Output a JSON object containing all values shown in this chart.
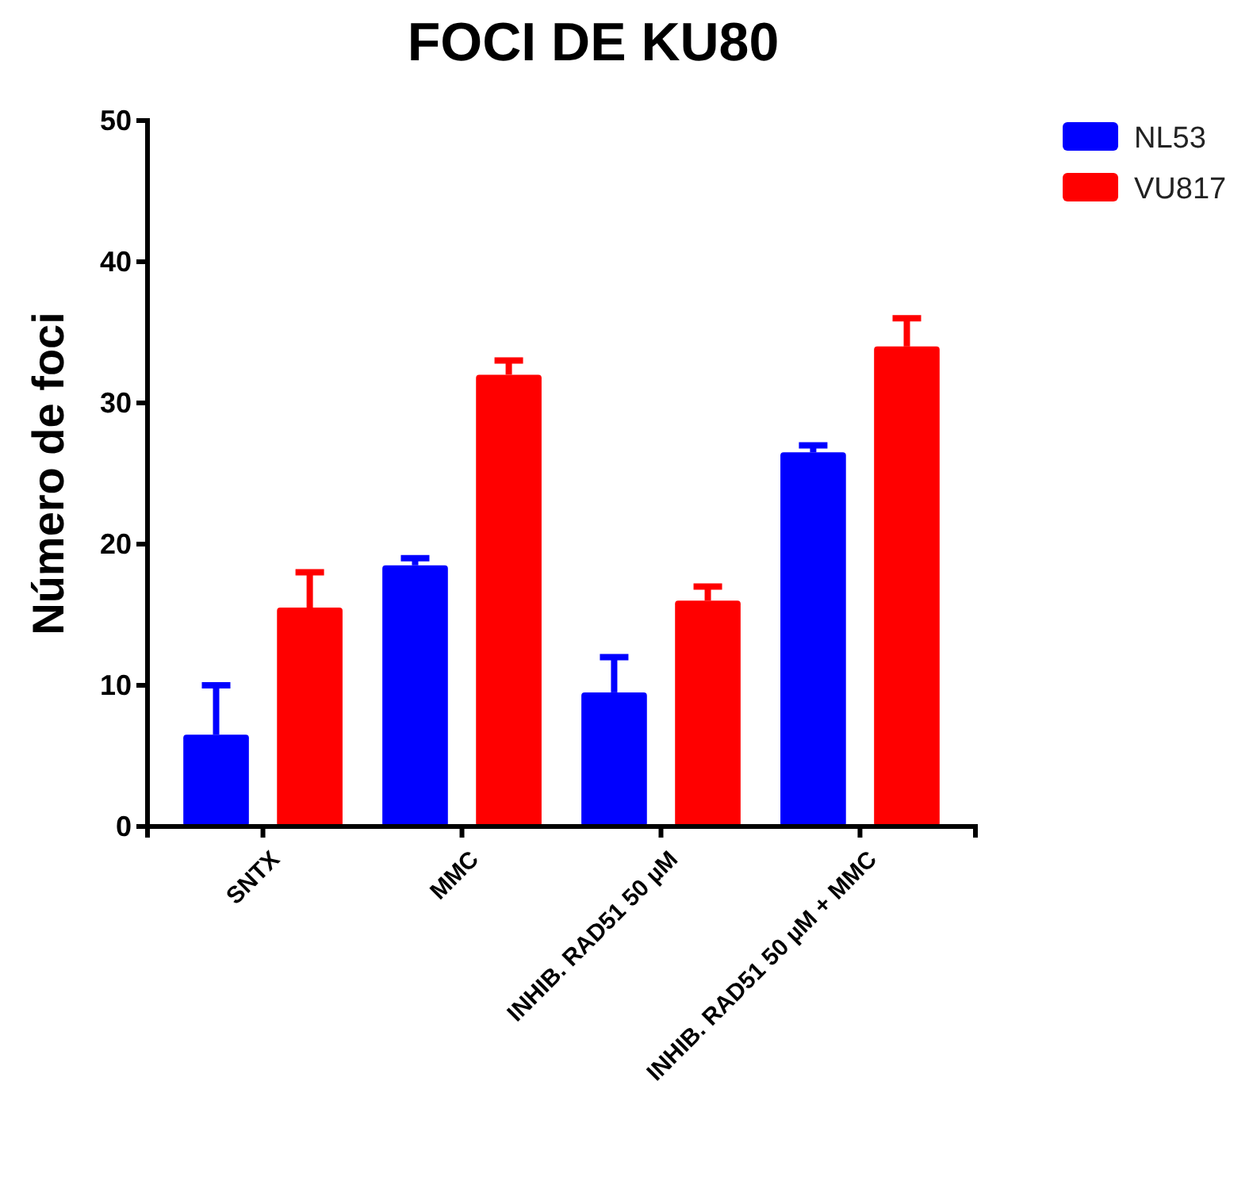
{
  "chart_data": {
    "type": "bar",
    "title": "FOCI DE KU80",
    "ylabel": "Número de foci",
    "categories": [
      "SNTX",
      "MMC",
      "INHIB. RAD51 50 µM",
      "INHIB. RAD51 50 µM + MMC"
    ],
    "series": [
      {
        "name": "NL53",
        "color": "#0000ff",
        "values": [
          6.5,
          18.5,
          9.5,
          26.5
        ],
        "errors": [
          [
            6.5,
            10
          ],
          [
            18.5,
            19
          ],
          [
            9.5,
            12
          ],
          [
            26.5,
            27
          ]
        ]
      },
      {
        "name": "VU817",
        "color": "#ff0000",
        "values": [
          15.5,
          32,
          16,
          34
        ],
        "errors": [
          [
            15.5,
            18
          ],
          [
            32,
            33
          ],
          [
            16,
            17
          ],
          [
            34,
            36
          ]
        ]
      }
    ],
    "ylim": [
      0,
      50
    ],
    "yticks": [
      0,
      10,
      20,
      30,
      40,
      50
    ],
    "grid": false,
    "legend": "top right"
  }
}
